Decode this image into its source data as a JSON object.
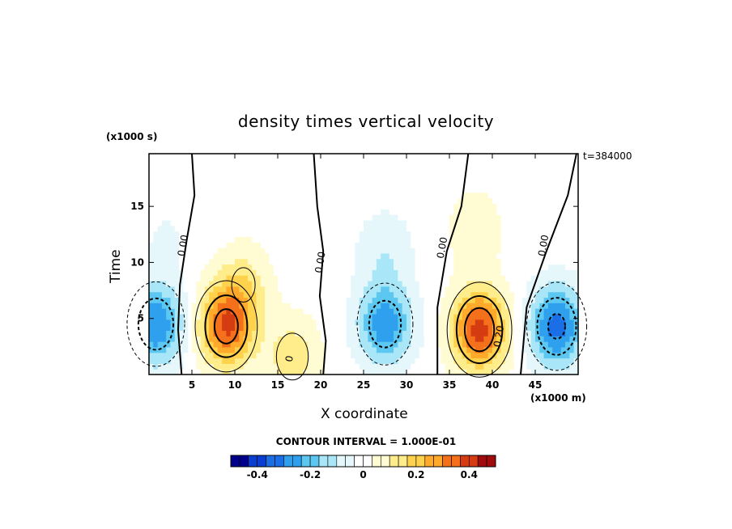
{
  "chart_data": {
    "type": "heatmap",
    "title": "density times vertical velocity",
    "xlabel": "X coordinate",
    "ylabel": "Time",
    "x_unit_label": "(x1000 m)",
    "y_unit_label": "(x1000 s)",
    "timestamp_label": "t=384000",
    "xlim": [
      0,
      50
    ],
    "ylim": [
      0,
      19.7
    ],
    "x_ticks": [
      "5",
      "10",
      "15",
      "20",
      "25",
      "30",
      "35",
      "40",
      "45"
    ],
    "y_ticks": [
      "5",
      "10",
      "15"
    ],
    "contour_interval_label": "CONTOUR INTERVAL = 1.000E-01",
    "colorbar": {
      "range": [
        -0.5,
        0.5
      ],
      "tick_labels": [
        "-0.4",
        "-0.2",
        "0",
        "0.2",
        "0.4"
      ],
      "tick_values": [
        -0.4,
        -0.2,
        0,
        0.2,
        0.4
      ]
    },
    "contour_labels": [
      {
        "text": "0.00",
        "x": 4.0,
        "y": 11.5
      },
      {
        "text": "0.00",
        "x": 20.0,
        "y": 10.0
      },
      {
        "text": "0.00",
        "x": 34.2,
        "y": 11.3
      },
      {
        "text": "0.00",
        "x": 46.0,
        "y": 11.5
      },
      {
        "text": "0.20",
        "x": 40.8,
        "y": 3.4
      },
      {
        "text": "0",
        "x": 16.4,
        "y": 1.4
      }
    ],
    "features": [
      {
        "x": 0.8,
        "y": 4.5,
        "peak": -0.3
      },
      {
        "x": 9.0,
        "y": 4.3,
        "peak": 0.36
      },
      {
        "x": 11.0,
        "y": 8.0,
        "peak": 0.12
      },
      {
        "x": 16.7,
        "y": 1.6,
        "peak": 0.14
      },
      {
        "x": 27.5,
        "y": 4.5,
        "peak": -0.28
      },
      {
        "x": 27.5,
        "y": 11.0,
        "peak": -0.09
      },
      {
        "x": 38.5,
        "y": 4.0,
        "peak": 0.4
      },
      {
        "x": 38.0,
        "y": 13.0,
        "peak": 0.08
      },
      {
        "x": 47.5,
        "y": 4.3,
        "peak": -0.33
      },
      {
        "x": 2.0,
        "y": 12.0,
        "peak": -0.04
      }
    ]
  },
  "colors": {
    "scale": [
      "#00008b",
      "#0a3ed0",
      "#1a6fe6",
      "#2fa0ee",
      "#5cc8f2",
      "#a8e6f8",
      "#e6f7fc",
      "#ffffff",
      "#fffbd2",
      "#ffec8a",
      "#ffd24d",
      "#ffaa2a",
      "#f4701a",
      "#d63c12",
      "#a00c0c"
    ]
  }
}
